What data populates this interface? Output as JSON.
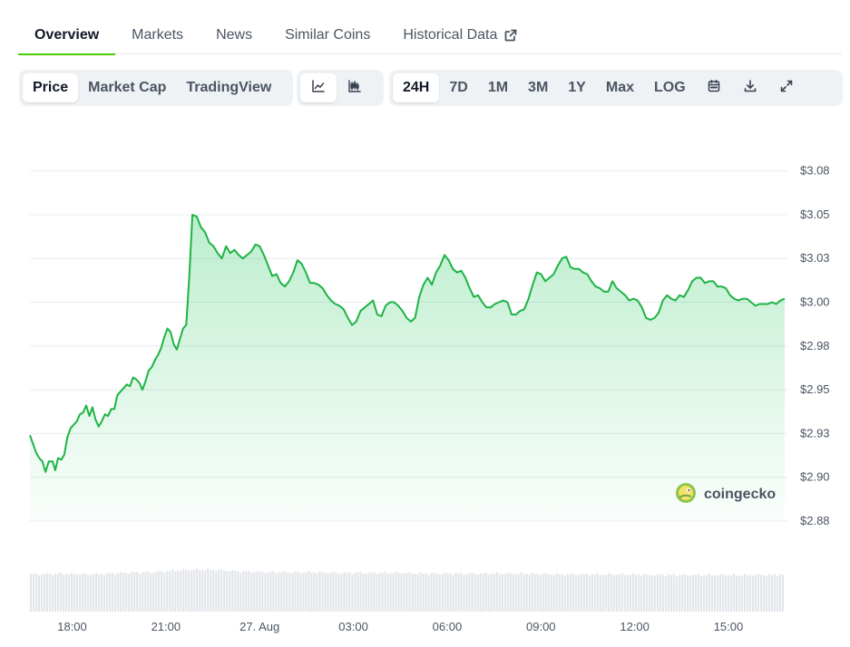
{
  "tabs": [
    {
      "label": "Overview",
      "active": true
    },
    {
      "label": "Markets",
      "active": false
    },
    {
      "label": "News",
      "active": false
    },
    {
      "label": "Similar Coins",
      "active": false
    },
    {
      "label": "Historical Data",
      "active": false,
      "icon": "external-link-icon"
    }
  ],
  "toolbar": {
    "chart_types": [
      {
        "label": "Price",
        "selected": true
      },
      {
        "label": "Market Cap",
        "selected": false
      },
      {
        "label": "TradingView",
        "selected": false
      }
    ],
    "chart_styles": [
      {
        "icon": "line-chart-icon",
        "selected": true
      },
      {
        "icon": "candlestick-chart-icon",
        "selected": false
      }
    ],
    "ranges": [
      {
        "label": "24H",
        "selected": true
      },
      {
        "label": "7D",
        "selected": false
      },
      {
        "label": "1M",
        "selected": false
      },
      {
        "label": "3M",
        "selected": false
      },
      {
        "label": "1Y",
        "selected": false
      },
      {
        "label": "Max",
        "selected": false
      },
      {
        "label": "LOG",
        "selected": false
      }
    ],
    "actions": [
      {
        "icon": "calendar-icon"
      },
      {
        "icon": "download-icon"
      },
      {
        "icon": "fullscreen-icon"
      }
    ]
  },
  "watermark": "coingecko",
  "colors": {
    "line": "#1db444",
    "accent": "#4bcc00",
    "grid": "#e9ecef",
    "volume": "#e2e5e9"
  },
  "chart_data": {
    "type": "area",
    "ylim": [
      2.875,
      3.08
    ],
    "yticks": [
      {
        "value": 3.075,
        "label": "$3.08"
      },
      {
        "value": 3.05,
        "label": "$3.05"
      },
      {
        "value": 3.025,
        "label": "$3.03"
      },
      {
        "value": 3.0,
        "label": "$3.00"
      },
      {
        "value": 2.975,
        "label": "$2.98"
      },
      {
        "value": 2.95,
        "label": "$2.95"
      },
      {
        "value": 2.925,
        "label": "$2.93"
      },
      {
        "value": 2.9,
        "label": "$2.90"
      },
      {
        "value": 2.875,
        "label": "$2.88"
      }
    ],
    "xlim": [
      16.65,
      40.8
    ],
    "xticks": [
      {
        "hour": 18,
        "label": "18:00"
      },
      {
        "hour": 21,
        "label": "21:00"
      },
      {
        "hour": 24,
        "label": "27. Aug"
      },
      {
        "hour": 27,
        "label": "03:00"
      },
      {
        "hour": 30,
        "label": "06:00"
      },
      {
        "hour": 33,
        "label": "09:00"
      },
      {
        "hour": 36,
        "label": "12:00"
      },
      {
        "hour": 39,
        "label": "15:00"
      }
    ],
    "price_points": [
      [
        16.65,
        2.924
      ],
      [
        16.85,
        2.914
      ],
      [
        16.95,
        2.911
      ],
      [
        17.05,
        2.909
      ],
      [
        17.15,
        2.903
      ],
      [
        17.25,
        2.909
      ],
      [
        17.38,
        2.909
      ],
      [
        17.46,
        2.904
      ],
      [
        17.55,
        2.911
      ],
      [
        17.65,
        2.91
      ],
      [
        17.75,
        2.913
      ],
      [
        17.85,
        2.923
      ],
      [
        17.95,
        2.928
      ],
      [
        18.05,
        2.93
      ],
      [
        18.15,
        2.932
      ],
      [
        18.25,
        2.936
      ],
      [
        18.35,
        2.937
      ],
      [
        18.45,
        2.941
      ],
      [
        18.55,
        2.935
      ],
      [
        18.65,
        2.94
      ],
      [
        18.75,
        2.933
      ],
      [
        18.85,
        2.929
      ],
      [
        18.95,
        2.932
      ],
      [
        19.05,
        2.936
      ],
      [
        19.15,
        2.935
      ],
      [
        19.25,
        2.939
      ],
      [
        19.35,
        2.939
      ],
      [
        19.45,
        2.947
      ],
      [
        19.55,
        2.949
      ],
      [
        19.65,
        2.951
      ],
      [
        19.75,
        2.953
      ],
      [
        19.85,
        2.952
      ],
      [
        19.95,
        2.957
      ],
      [
        20.05,
        2.956
      ],
      [
        20.15,
        2.954
      ],
      [
        20.25,
        2.95
      ],
      [
        20.35,
        2.955
      ],
      [
        20.45,
        2.961
      ],
      [
        20.55,
        2.963
      ],
      [
        20.65,
        2.967
      ],
      [
        20.75,
        2.97
      ],
      [
        20.85,
        2.974
      ],
      [
        20.95,
        2.98
      ],
      [
        21.05,
        2.985
      ],
      [
        21.15,
        2.983
      ],
      [
        21.25,
        2.976
      ],
      [
        21.35,
        2.973
      ],
      [
        21.45,
        2.979
      ],
      [
        21.55,
        2.985
      ],
      [
        21.65,
        2.987
      ],
      [
        21.75,
        3.015
      ],
      [
        21.85,
        3.05
      ],
      [
        21.95,
        3.049
      ],
      [
        22.05,
        3.043
      ],
      [
        22.15,
        3.04
      ],
      [
        22.25,
        3.034
      ],
      [
        22.35,
        3.032
      ],
      [
        22.45,
        3.028
      ],
      [
        22.55,
        3.025
      ],
      [
        22.65,
        3.032
      ],
      [
        22.75,
        3.028
      ],
      [
        22.85,
        3.03
      ],
      [
        22.95,
        3.027
      ],
      [
        23.05,
        3.025
      ],
      [
        23.15,
        3.027
      ],
      [
        23.25,
        3.029
      ],
      [
        23.35,
        3.033
      ],
      [
        23.45,
        3.032
      ],
      [
        23.55,
        3.027
      ],
      [
        23.65,
        3.021
      ],
      [
        23.75,
        3.015
      ],
      [
        23.85,
        3.016
      ],
      [
        23.95,
        3.011
      ],
      [
        24.05,
        3.009
      ],
      [
        24.15,
        3.012
      ],
      [
        24.25,
        3.017
      ],
      [
        24.35,
        3.024
      ],
      [
        24.45,
        3.022
      ],
      [
        24.55,
        3.017
      ],
      [
        24.65,
        3.011
      ],
      [
        24.75,
        3.011
      ],
      [
        24.85,
        3.01
      ],
      [
        24.95,
        3.008
      ],
      [
        25.05,
        3.004
      ],
      [
        25.15,
        3.001
      ],
      [
        25.25,
        2.999
      ],
      [
        25.35,
        2.998
      ],
      [
        25.45,
        2.996
      ],
      [
        25.55,
        2.991
      ],
      [
        25.65,
        2.987
      ],
      [
        25.75,
        2.989
      ],
      [
        25.85,
        2.995
      ],
      [
        25.95,
        2.997
      ],
      [
        26.05,
        2.999
      ],
      [
        26.15,
        3.001
      ],
      [
        26.25,
        2.993
      ],
      [
        26.35,
        2.992
      ],
      [
        26.45,
        2.998
      ],
      [
        26.55,
        3.0
      ],
      [
        26.65,
        3.0
      ],
      [
        26.75,
        2.998
      ],
      [
        26.85,
        2.995
      ],
      [
        26.95,
        2.991
      ],
      [
        27.05,
        2.989
      ],
      [
        27.15,
        2.991
      ],
      [
        27.25,
        3.003
      ],
      [
        27.35,
        3.01
      ],
      [
        27.45,
        3.014
      ],
      [
        27.55,
        3.01
      ],
      [
        27.65,
        3.017
      ],
      [
        27.75,
        3.021
      ],
      [
        27.85,
        3.027
      ],
      [
        27.95,
        3.024
      ],
      [
        28.05,
        3.019
      ],
      [
        28.15,
        3.017
      ],
      [
        28.25,
        3.018
      ],
      [
        28.35,
        3.014
      ],
      [
        28.45,
        3.008
      ],
      [
        28.55,
        3.003
      ],
      [
        28.65,
        3.004
      ],
      [
        28.75,
        3.0
      ],
      [
        28.85,
        2.997
      ],
      [
        28.95,
        2.997
      ],
      [
        29.05,
        2.999
      ],
      [
        29.15,
        3.0
      ],
      [
        29.25,
        3.001
      ],
      [
        29.35,
        3.0
      ],
      [
        29.45,
        2.993
      ],
      [
        29.55,
        2.993
      ],
      [
        29.65,
        2.995
      ],
      [
        29.75,
        2.996
      ],
      [
        29.85,
        3.002
      ],
      [
        29.95,
        3.01
      ],
      [
        30.05,
        3.017
      ],
      [
        30.15,
        3.016
      ],
      [
        30.25,
        3.012
      ],
      [
        30.35,
        3.014
      ],
      [
        30.45,
        3.016
      ],
      [
        30.55,
        3.021
      ],
      [
        30.65,
        3.025
      ],
      [
        30.75,
        3.026
      ],
      [
        30.85,
        3.02
      ],
      [
        30.95,
        3.019
      ],
      [
        31.05,
        3.019
      ],
      [
        31.15,
        3.017
      ],
      [
        31.25,
        3.016
      ],
      [
        31.35,
        3.012
      ],
      [
        31.45,
        3.009
      ],
      [
        31.55,
        3.008
      ],
      [
        31.65,
        3.006
      ],
      [
        31.75,
        3.006
      ],
      [
        31.85,
        3.012
      ],
      [
        31.95,
        3.008
      ],
      [
        32.05,
        3.006
      ],
      [
        32.15,
        3.004
      ],
      [
        32.25,
        3.001
      ],
      [
        32.35,
        3.002
      ],
      [
        32.45,
        3.001
      ],
      [
        32.55,
        2.997
      ],
      [
        32.65,
        2.991
      ],
      [
        32.75,
        2.99
      ],
      [
        32.85,
        2.991
      ],
      [
        32.95,
        2.994
      ],
      [
        33.05,
        3.001
      ],
      [
        33.15,
        3.004
      ],
      [
        33.25,
        3.002
      ],
      [
        33.35,
        3.001
      ],
      [
        33.45,
        3.004
      ],
      [
        33.55,
        3.003
      ],
      [
        33.65,
        3.007
      ],
      [
        33.75,
        3.012
      ],
      [
        33.85,
        3.014
      ],
      [
        33.95,
        3.014
      ],
      [
        34.05,
        3.011
      ],
      [
        34.15,
        3.012
      ],
      [
        34.25,
        3.012
      ],
      [
        34.35,
        3.009
      ],
      [
        34.45,
        3.009
      ],
      [
        34.55,
        3.008
      ],
      [
        34.65,
        3.004
      ],
      [
        34.75,
        3.002
      ],
      [
        34.85,
        3.001
      ],
      [
        34.95,
        3.002
      ],
      [
        35.05,
        3.002
      ],
      [
        35.15,
        3.0
      ],
      [
        35.25,
        2.998
      ],
      [
        35.35,
        2.999
      ],
      [
        35.45,
        2.999
      ],
      [
        35.55,
        2.999
      ],
      [
        35.65,
        3.0
      ],
      [
        35.75,
        2.999
      ],
      [
        35.85,
        3.001
      ],
      [
        35.95,
        3.002
      ]
    ],
    "volume_points": [
      [
        16.65,
        0.55
      ],
      [
        17.65,
        0.56
      ],
      [
        18.65,
        0.55
      ],
      [
        19.65,
        0.57
      ],
      [
        20.65,
        0.58
      ],
      [
        21.45,
        0.61
      ],
      [
        22.05,
        0.62
      ],
      [
        22.75,
        0.61
      ],
      [
        23.45,
        0.59
      ],
      [
        24.45,
        0.58
      ],
      [
        25.45,
        0.58
      ],
      [
        26.45,
        0.57
      ],
      [
        27.45,
        0.57
      ],
      [
        28.45,
        0.57
      ],
      [
        29.45,
        0.56
      ],
      [
        30.45,
        0.56
      ],
      [
        31.45,
        0.56
      ],
      [
        32.45,
        0.56
      ],
      [
        33.45,
        0.55
      ],
      [
        34.45,
        0.55
      ],
      [
        35.45,
        0.55
      ],
      [
        36.45,
        0.54
      ],
      [
        37.45,
        0.54
      ],
      [
        38.45,
        0.54
      ],
      [
        39.45,
        0.54
      ],
      [
        40.45,
        0.54
      ],
      [
        40.8,
        0.54
      ]
    ]
  }
}
